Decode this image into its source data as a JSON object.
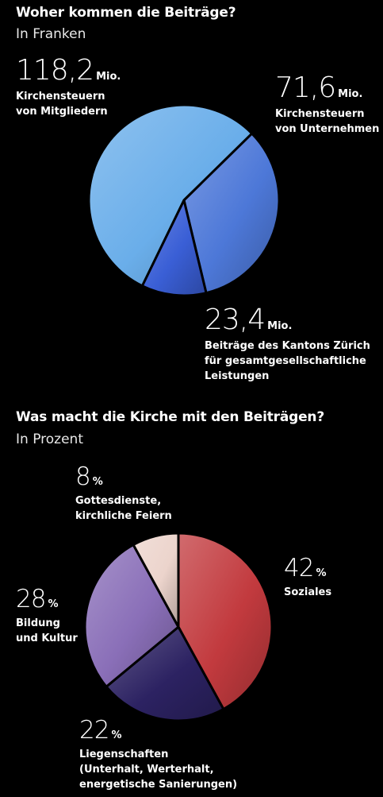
{
  "chart_data": [
    {
      "type": "pie",
      "title": "Woher kommen die Beiträge?",
      "subtitle": "In Franken",
      "unit": "Mio.",
      "slices": [
        {
          "value": 118.2,
          "value_text": "118,2",
          "label": "Kirchensteuern\nvon Mitgliedern",
          "color": "#6aaeea"
        },
        {
          "value": 71.6,
          "value_text": "71,6",
          "label": "Kirchensteuern\nvon Unternehmen",
          "color": "#4d78d8"
        },
        {
          "value": 23.4,
          "value_text": "23,4",
          "label": "Beiträge des Kantons Zürich\nfür gesamtgesellschaftliche\nLeistungen",
          "color": "#3a5fd6"
        }
      ]
    },
    {
      "type": "pie",
      "title": "Was macht die Kirche mit den Beiträgen?",
      "subtitle": "In Prozent",
      "unit": "%",
      "slices": [
        {
          "value": 42,
          "value_text": "42",
          "label": "Soziales",
          "color": "#c23a3e"
        },
        {
          "value": 22,
          "value_text": "22",
          "label": "Liegenschaften\n(Unterhalt, Werterhalt,\nenergetische Sanierungen)",
          "color": "#2c2262"
        },
        {
          "value": 28,
          "value_text": "28",
          "label": "Bildung\nund Kultur",
          "color": "#8a6fb8"
        },
        {
          "value": 8,
          "value_text": "8",
          "label": "Gottesdienste,\nkirchliche Feiern",
          "color": "#ecd4cc"
        }
      ]
    }
  ]
}
